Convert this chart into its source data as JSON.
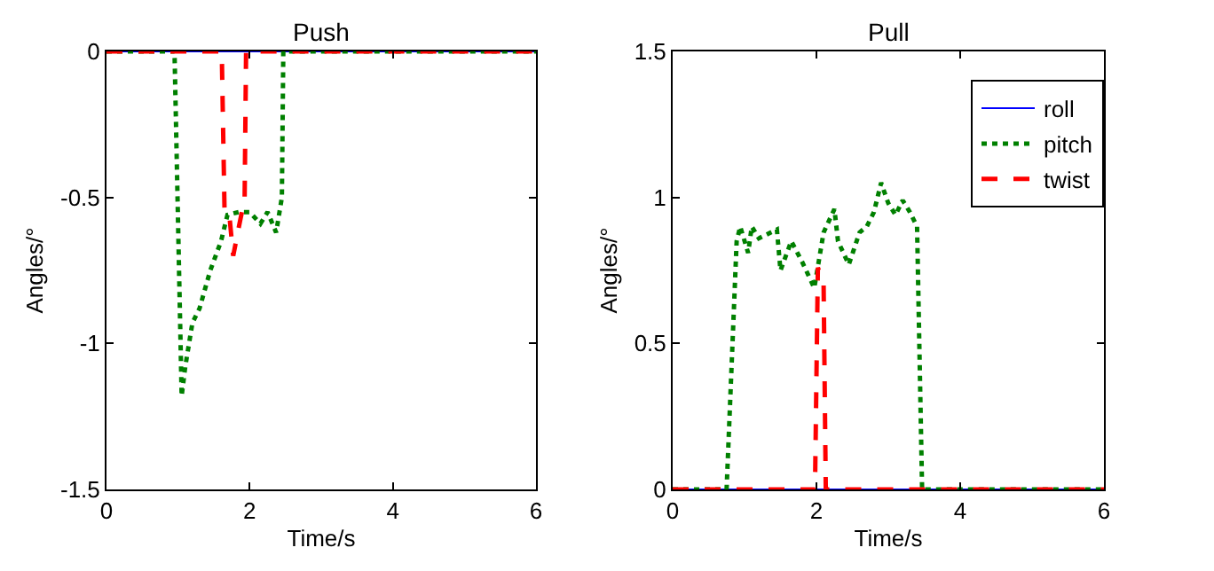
{
  "chart_data": [
    {
      "type": "line",
      "title": "Push",
      "xlabel": "Time/s",
      "ylabel": "Angles/°",
      "xlim": [
        0,
        6
      ],
      "xticks": [
        0,
        2,
        4,
        6
      ],
      "ylim": [
        -1.5,
        0
      ],
      "yticks": [
        -1.5,
        -1,
        -0.5,
        0
      ],
      "legend": false,
      "marker": "none",
      "series": [
        {
          "color": "#0000ff",
          "line_style": "solid",
          "x": [
            0,
            6
          ],
          "values": [
            0,
            0
          ]
        },
        {
          "color": "#008000",
          "line_style": "dotted",
          "x": [
            0,
            0.95,
            1.05,
            1.1,
            1.2,
            1.3,
            1.45,
            1.6,
            1.69,
            1.85,
            2.0,
            2.15,
            2.25,
            2.37,
            2.45,
            2.47,
            6
          ],
          "values": [
            0,
            0,
            -1.18,
            -1.08,
            -0.93,
            -0.88,
            -0.75,
            -0.65,
            -0.56,
            -0.55,
            -0.55,
            -0.59,
            -0.55,
            -0.62,
            -0.5,
            0,
            0
          ]
        },
        {
          "color": "#ff0000",
          "line_style": "dashed",
          "x": [
            0,
            1.61,
            1.65,
            1.72,
            1.77,
            1.85,
            1.9,
            1.93,
            1.95,
            6
          ],
          "values": [
            0,
            0,
            -0.56,
            -0.57,
            -0.7,
            -0.6,
            -0.54,
            -0.5,
            0,
            0
          ]
        }
      ]
    },
    {
      "type": "line",
      "title": "Pull",
      "xlabel": "Time/s",
      "ylabel": "Angles/°",
      "xlim": [
        0,
        6
      ],
      "xticks": [
        0,
        2,
        4,
        6
      ],
      "ylim": [
        0,
        1.5
      ],
      "yticks": [
        0,
        0.5,
        1,
        1.5
      ],
      "legend": "top right",
      "marker": "none",
      "series": [
        {
          "name": "roll",
          "color": "#0000ff",
          "line_style": "solid",
          "x": [
            0,
            6
          ],
          "values": [
            0,
            0
          ]
        },
        {
          "name": "pitch",
          "color": "#008000",
          "line_style": "dotted",
          "x": [
            0,
            0.75,
            0.89,
            0.94,
            1.05,
            1.1,
            1.2,
            1.45,
            1.5,
            1.65,
            1.8,
            1.97,
            2.1,
            2.25,
            2.3,
            2.45,
            2.6,
            2.7,
            2.8,
            2.9,
            3.0,
            3.1,
            3.2,
            3.3,
            3.4,
            3.47,
            6
          ],
          "values": [
            0,
            0,
            0.85,
            0.9,
            0.81,
            0.9,
            0.86,
            0.89,
            0.75,
            0.85,
            0.78,
            0.69,
            0.88,
            0.96,
            0.85,
            0.77,
            0.88,
            0.9,
            0.95,
            1.05,
            0.98,
            0.94,
            0.99,
            0.95,
            0.9,
            0,
            0
          ]
        },
        {
          "name": "twist",
          "color": "#ff0000",
          "line_style": "dashed",
          "x": [
            0,
            1.98,
            2.02,
            2.1,
            2.13,
            6
          ],
          "values": [
            0,
            0,
            0.76,
            0.7,
            0,
            0
          ]
        }
      ]
    }
  ]
}
